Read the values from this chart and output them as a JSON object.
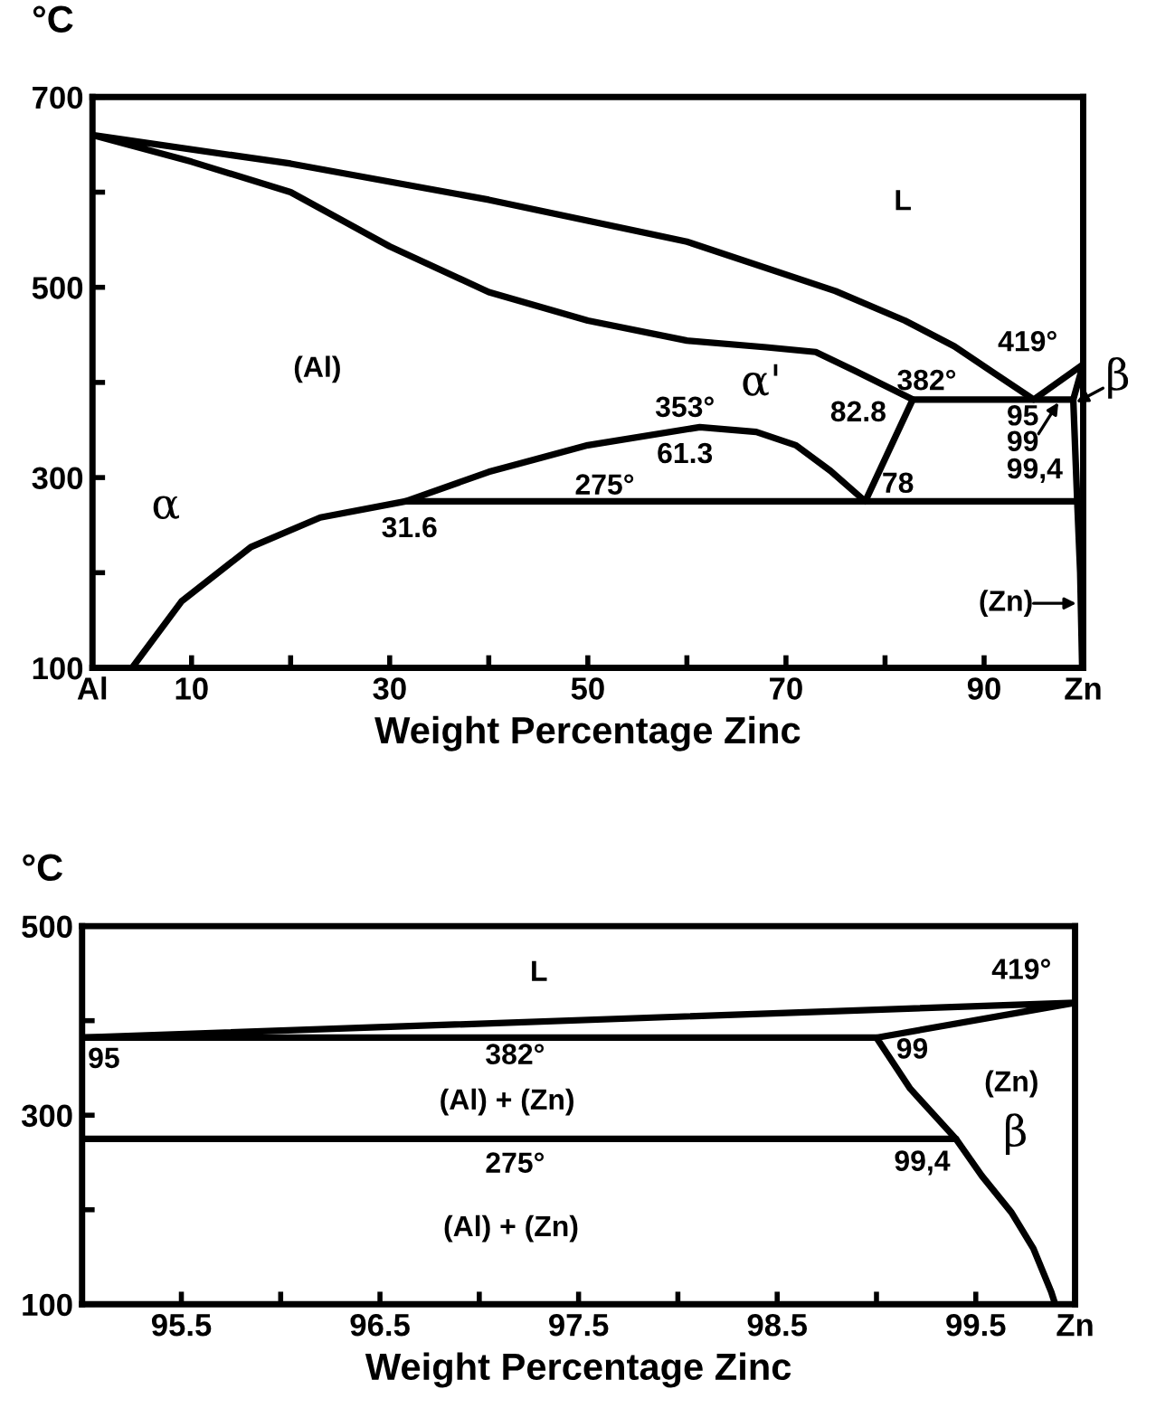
{
  "chart_data": [
    {
      "type": "line",
      "ylabel": "°C",
      "xlabel": "Weight Percentage Zinc",
      "xlim": [
        0,
        100
      ],
      "ylim": [
        100,
        700
      ],
      "xticks": [
        {
          "value": 0,
          "label": "Al"
        },
        10,
        {
          "value": 20,
          "label": null
        },
        30,
        {
          "value": 40,
          "label": null
        },
        50,
        {
          "value": 60,
          "label": null
        },
        70,
        {
          "value": 80,
          "label": null
        },
        90,
        {
          "value": 100,
          "label": "Zn"
        }
      ],
      "yticks": [
        100,
        {
          "value": 200,
          "label": null
        },
        300,
        {
          "value": 400,
          "label": null
        },
        500,
        {
          "value": 600,
          "label": null
        },
        700
      ],
      "series": [
        {
          "color": "#000000",
          "x": [
            4,
            9,
            16,
            23,
            31.6,
            40,
            50,
            61.3,
            67,
            71,
            74.5,
            78,
            82.8,
            77,
            73,
            68,
            60,
            50,
            40,
            30,
            20,
            10,
            0,
            20,
            40,
            60,
            75,
            82,
            87,
            91,
            95,
            100,
            99,
            99.4,
            99.7,
            99.9
          ],
          "values": [
            100,
            170,
            227,
            258,
            275,
            306,
            334,
            353,
            348,
            334,
            307,
            275,
            382,
            412,
            432,
            437,
            444,
            465,
            495,
            543,
            600,
            632,
            660,
            630,
            592,
            548,
            496,
            465,
            438,
            410,
            382,
            419,
            382,
            275,
            200,
            100
          ]
        },
        {
          "color": "#000000",
          "x": [
            82.8,
            99
          ],
          "values": [
            382,
            382
          ]
        },
        {
          "color": "#000000",
          "x": [
            31.6,
            99.4
          ],
          "values": [
            275,
            275
          ]
        }
      ],
      "annotations": [
        "L",
        "(Al)",
        "α",
        "α'",
        "353°",
        "61.3",
        "275°",
        "31.6",
        "82.8",
        "382°",
        "78",
        "419°",
        "95",
        "99",
        "99,4",
        "(Zn)",
        "β"
      ]
    },
    {
      "type": "line",
      "ylabel": "°C",
      "xlabel": "Weight Percentage Zinc",
      "xlim": [
        95,
        100
      ],
      "ylim": [
        100,
        500
      ],
      "xticks": [
        95.5,
        {
          "value": 96,
          "label": null
        },
        96.5,
        {
          "value": 97,
          "label": null
        },
        97.5,
        {
          "value": 98,
          "label": null
        },
        98.5,
        {
          "value": 99,
          "label": null
        },
        99.5,
        {
          "value": 100,
          "label": "Zn"
        }
      ],
      "yticks": [
        100,
        {
          "value": 200,
          "label": null
        },
        300,
        {
          "value": 400,
          "label": null
        },
        500
      ],
      "series": [
        {
          "color": "#000000",
          "x": [
            95,
            100,
            99,
            99.17,
            99.4,
            99.53,
            99.68,
            99.79,
            99.88,
            99.9
          ],
          "values": [
            382,
            419,
            382,
            328,
            275,
            236,
            197,
            159,
            113,
            100
          ]
        },
        {
          "color": "#000000",
          "x": [
            95,
            99
          ],
          "values": [
            382,
            382
          ]
        },
        {
          "color": "#000000",
          "x": [
            95,
            99.4
          ],
          "values": [
            275,
            275
          ]
        }
      ],
      "annotations": [
        "L",
        "419°",
        "95",
        "382°",
        "99",
        "(Al) + (Zn)",
        "(Zn)",
        "β",
        "275°",
        "99,4",
        "(Al) + (Zn)"
      ]
    }
  ]
}
